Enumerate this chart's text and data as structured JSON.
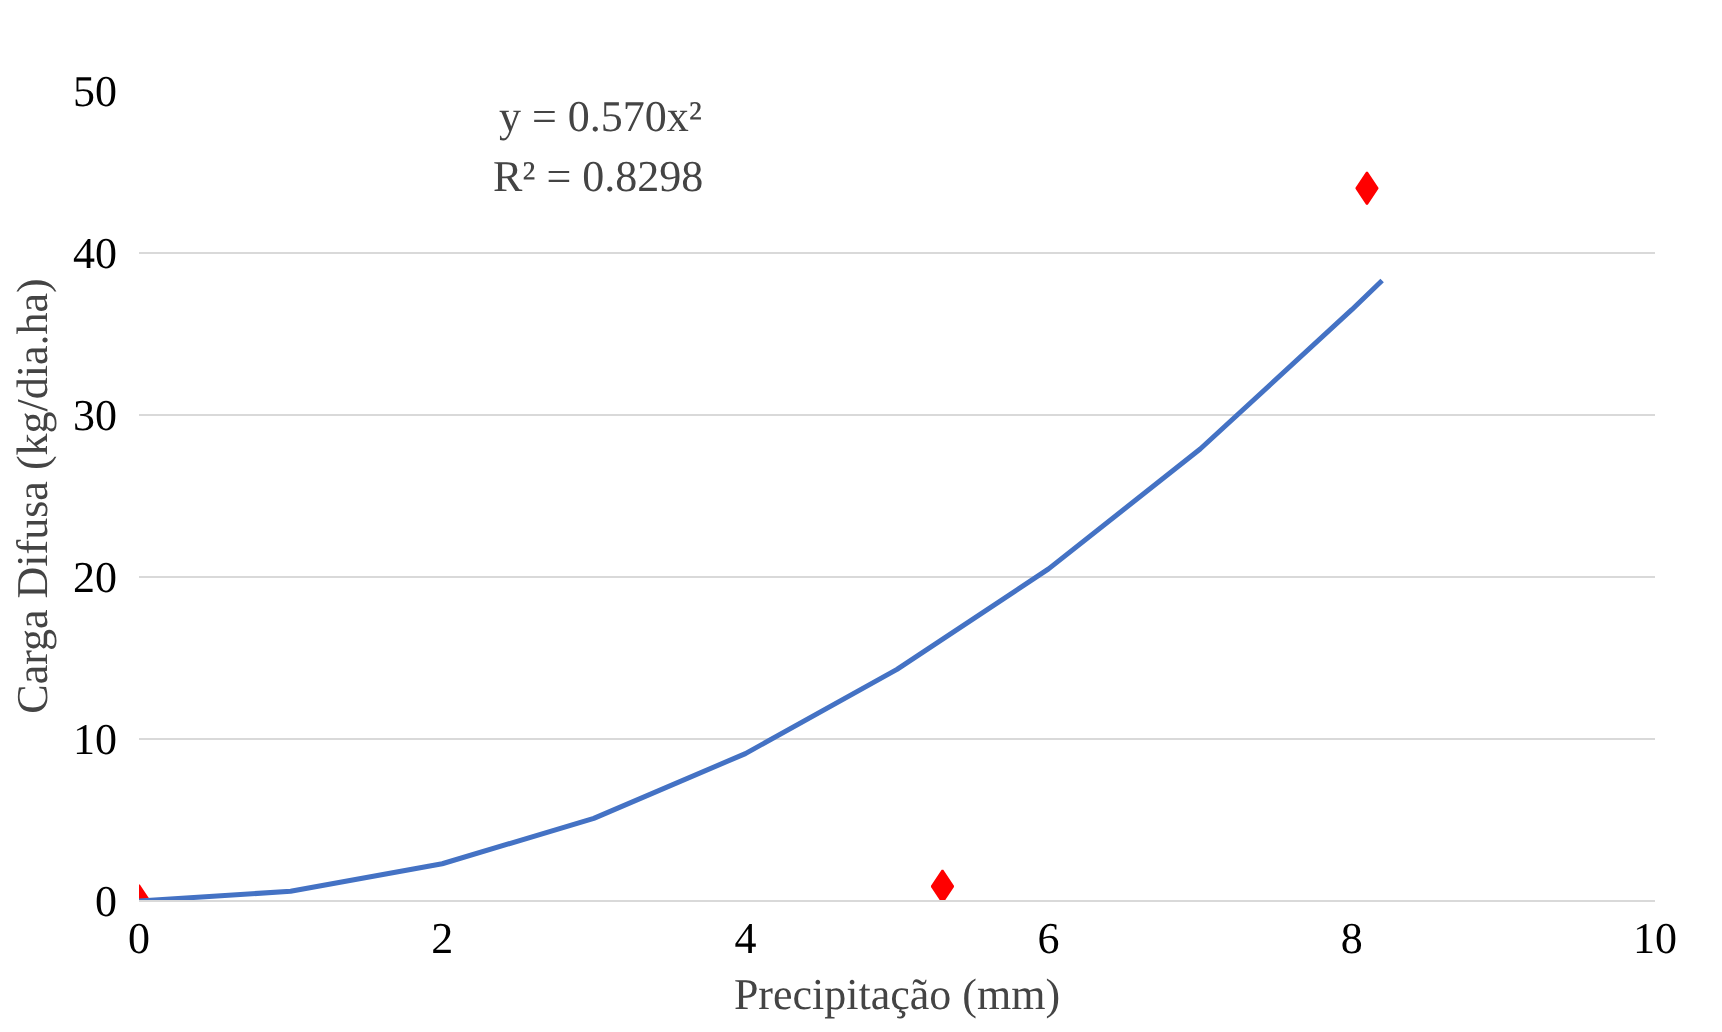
{
  "chart_data": {
    "type": "scatter",
    "xlabel": "Precipitação (mm)",
    "ylabel": "Carga Difusa (kg/dia.ha)",
    "series": [
      {
        "color": "#ff0000",
        "x": [
          0,
          5.3,
          8.1
        ],
        "values": [
          0,
          0.9,
          44
        ],
        "marker": "diamond"
      },
      {
        "type": "line",
        "color": "#4472c4",
        "x": [
          0,
          1,
          2,
          3,
          4,
          5,
          6,
          7,
          8,
          8.2
        ],
        "values": [
          0,
          0.6,
          2.3,
          5.1,
          9.1,
          14.3,
          20.5,
          27.9,
          36.5,
          38.3
        ],
        "marker": "none"
      }
    ],
    "annotations": [
      "y = 0.570x²",
      "R² = 0.8298"
    ],
    "xlim": [
      0,
      10
    ],
    "xticks": [
      0,
      2,
      4,
      6,
      8,
      10
    ],
    "ylim": [
      0,
      50
    ],
    "yticks": [
      0,
      10,
      20,
      30,
      40,
      50
    ],
    "grid": "y"
  }
}
